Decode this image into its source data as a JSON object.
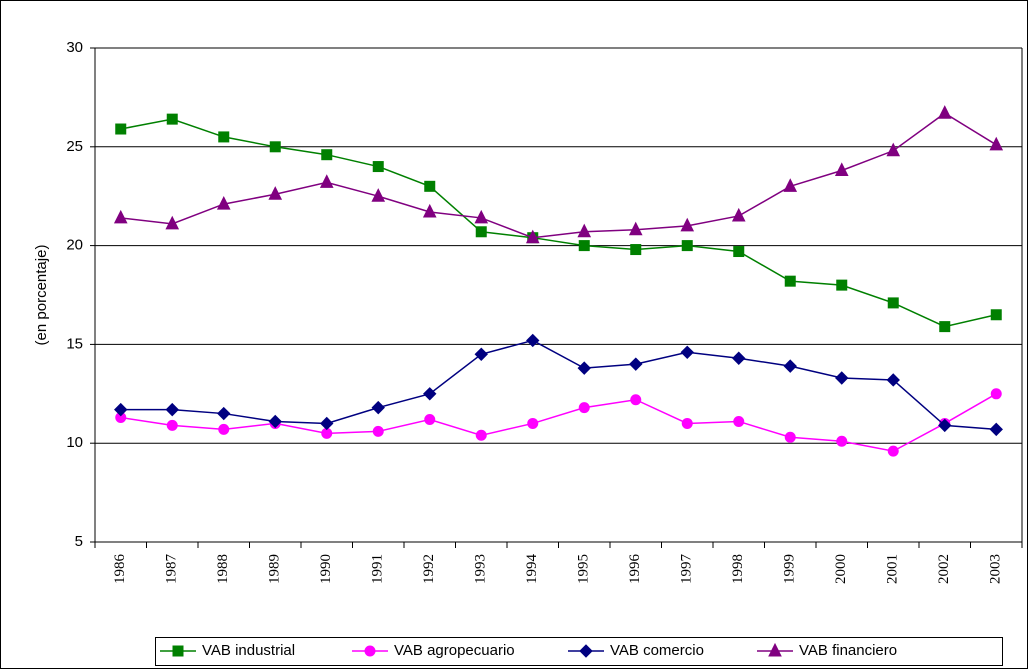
{
  "chart_data": {
    "type": "line",
    "y_label": "(en porcentaje)",
    "categories": [
      "1986",
      "1987",
      "1988",
      "1989",
      "1990",
      "1991",
      "1992",
      "1993",
      "1994",
      "1995",
      "1996",
      "1997",
      "1998",
      "1999",
      "2000",
      "2001",
      "2002",
      "2003"
    ],
    "series": [
      {
        "name": "VAB industrial",
        "color": "#008000",
        "marker": "square",
        "values": [
          25.9,
          26.4,
          25.5,
          25.0,
          24.6,
          24.0,
          23.0,
          20.7,
          20.4,
          20.0,
          19.8,
          20.0,
          19.7,
          18.2,
          18.0,
          17.1,
          15.9,
          16.5
        ]
      },
      {
        "name": "VAB agropecuario",
        "color": "#ff00ff",
        "marker": "circle",
        "values": [
          11.3,
          10.9,
          10.7,
          11.0,
          10.5,
          10.6,
          11.2,
          10.4,
          11.0,
          11.8,
          12.2,
          11.0,
          11.1,
          10.3,
          10.1,
          9.6,
          11.0,
          12.5
        ]
      },
      {
        "name": "VAB comercio",
        "color": "#000080",
        "marker": "diamond",
        "values": [
          11.7,
          11.7,
          11.5,
          11.1,
          11.0,
          11.8,
          12.5,
          14.5,
          15.2,
          13.8,
          14.0,
          14.6,
          14.3,
          13.9,
          13.3,
          13.2,
          10.9,
          10.7
        ]
      },
      {
        "name": "VAB financiero",
        "color": "#800080",
        "marker": "triangle",
        "values": [
          21.4,
          21.1,
          22.1,
          22.6,
          23.2,
          22.5,
          21.7,
          21.4,
          20.4,
          20.7,
          20.8,
          21.0,
          21.5,
          23.0,
          23.8,
          24.8,
          26.7,
          25.1
        ]
      }
    ],
    "ylim": [
      5,
      30
    ],
    "yticks": [
      5,
      10,
      15,
      20,
      25,
      30
    ],
    "grid": true,
    "legend": "bottom"
  }
}
